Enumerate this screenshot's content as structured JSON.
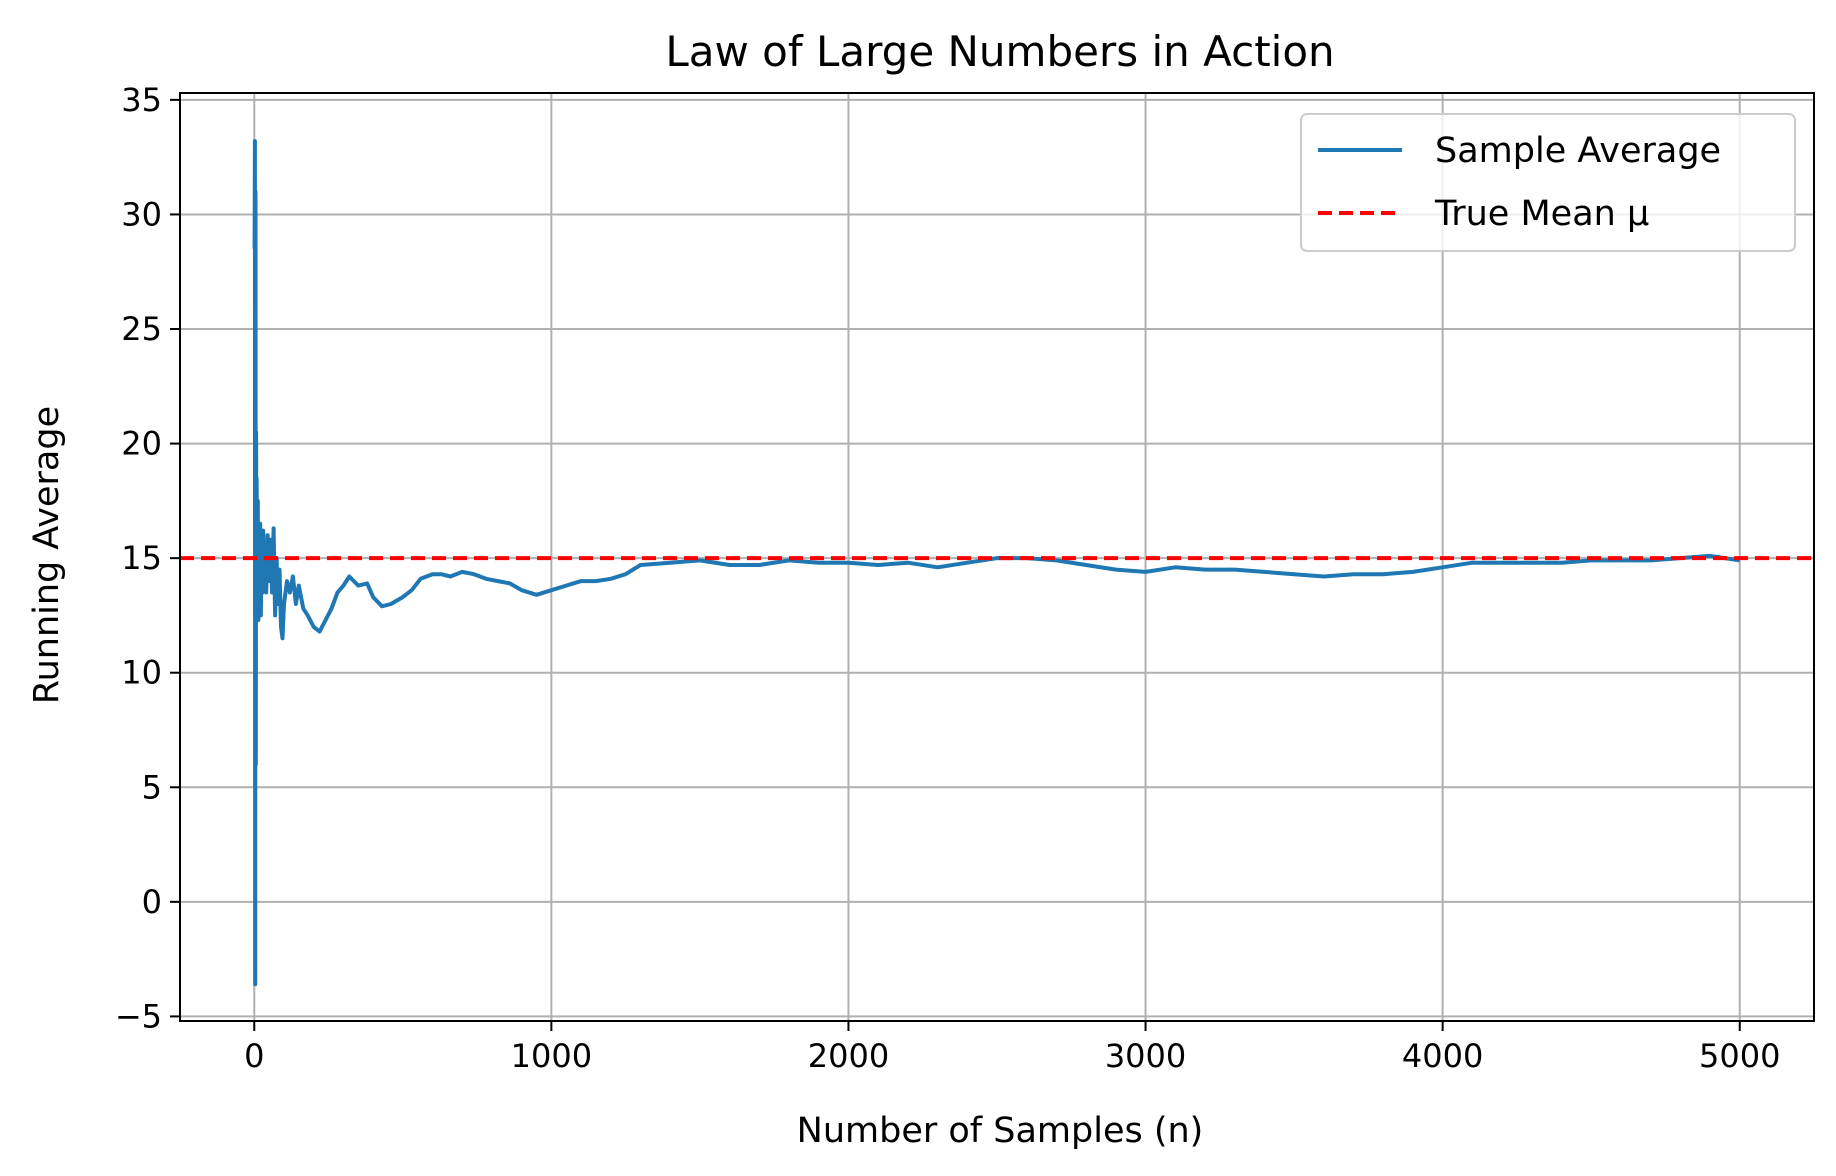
{
  "chart_data": {
    "type": "line",
    "title": "Law of Large Numbers in Action",
    "xlabel": "Number of Samples (n)",
    "ylabel": "Running Average",
    "xlim": [
      -250,
      5250
    ],
    "ylim": [
      -5.2,
      35.3
    ],
    "xticks": [
      0,
      1000,
      2000,
      3000,
      4000,
      5000
    ],
    "xtick_labels": [
      "0",
      "1000",
      "2000",
      "3000",
      "4000",
      "5000"
    ],
    "yticks": [
      -5,
      0,
      5,
      10,
      15,
      20,
      25,
      30,
      35
    ],
    "ytick_labels": [
      "−5",
      "0",
      "5",
      "10",
      "15",
      "20",
      "25",
      "30",
      "35"
    ],
    "grid": true,
    "legend_position": "top-right",
    "series": [
      {
        "name": "Sample Average",
        "color": "#1f77b4",
        "style": "solid",
        "x": [
          1,
          2,
          3,
          4,
          5,
          6,
          7,
          8,
          10,
          12,
          14,
          16,
          18,
          20,
          22,
          25,
          28,
          30,
          33,
          36,
          40,
          45,
          50,
          55,
          60,
          65,
          70,
          75,
          80,
          85,
          90,
          95,
          100,
          110,
          120,
          130,
          140,
          150,
          165,
          180,
          200,
          220,
          240,
          260,
          280,
          300,
          320,
          350,
          380,
          400,
          430,
          460,
          500,
          530,
          560,
          600,
          630,
          660,
          700,
          740,
          780,
          820,
          860,
          900,
          950,
          1000,
          1050,
          1100,
          1150,
          1200,
          1250,
          1300,
          1400,
          1500,
          1600,
          1700,
          1800,
          1900,
          2000,
          2100,
          2200,
          2300,
          2400,
          2500,
          2600,
          2700,
          2800,
          2900,
          3000,
          3100,
          3200,
          3300,
          3400,
          3500,
          3600,
          3700,
          3800,
          3900,
          4000,
          4100,
          4200,
          4300,
          4400,
          4500,
          4600,
          4700,
          4800,
          4900,
          5000
        ],
        "y": [
          28.5,
          33.2,
          -3.6,
          31.0,
          6.0,
          20.5,
          12.5,
          18.5,
          14.0,
          17.5,
          12.3,
          15.8,
          13.0,
          16.5,
          12.5,
          15.0,
          13.5,
          16.2,
          14.0,
          15.5,
          13.5,
          16.0,
          14.0,
          15.8,
          13.5,
          16.3,
          12.5,
          15.0,
          13.0,
          14.5,
          12.0,
          11.5,
          13.0,
          14.0,
          13.5,
          14.2,
          13.0,
          13.8,
          12.8,
          12.5,
          12.0,
          11.8,
          12.3,
          12.8,
          13.5,
          13.8,
          14.2,
          13.8,
          13.9,
          13.3,
          12.9,
          13.0,
          13.3,
          13.6,
          14.1,
          14.3,
          14.3,
          14.2,
          14.4,
          14.3,
          14.1,
          14.0,
          13.9,
          13.6,
          13.4,
          13.6,
          13.8,
          14.0,
          14.0,
          14.1,
          14.3,
          14.7,
          14.8,
          14.9,
          14.7,
          14.7,
          14.9,
          14.8,
          14.8,
          14.7,
          14.8,
          14.6,
          14.8,
          15.0,
          15.0,
          14.9,
          14.7,
          14.5,
          14.4,
          14.6,
          14.5,
          14.5,
          14.4,
          14.3,
          14.2,
          14.3,
          14.3,
          14.4,
          14.6,
          14.8,
          14.8,
          14.8,
          14.8,
          14.9,
          14.9,
          14.9,
          15.0,
          15.1,
          14.9
        ]
      },
      {
        "name": "True Mean μ",
        "color": "#ff0000",
        "style": "dashed",
        "y": 15
      }
    ]
  }
}
